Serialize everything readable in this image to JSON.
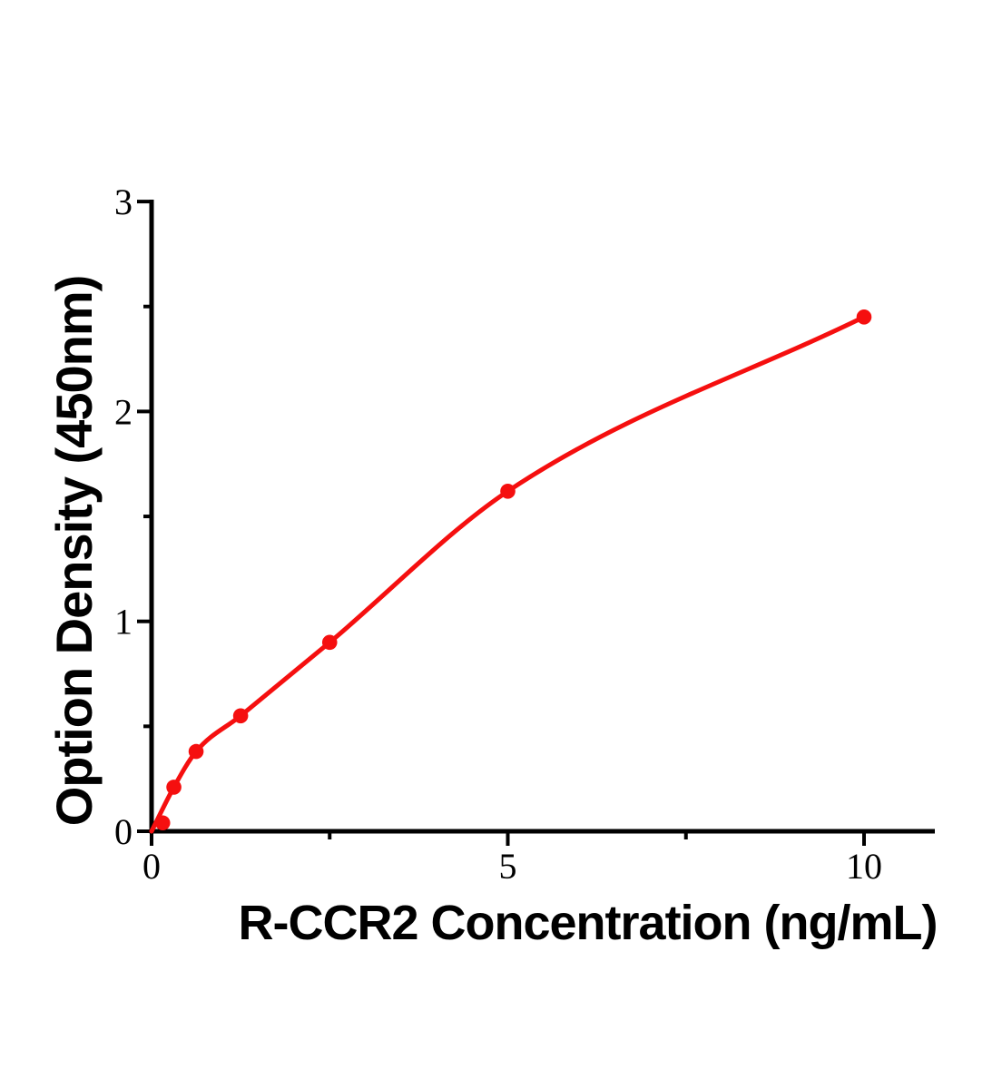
{
  "chart_data": {
    "type": "scatter",
    "title": "",
    "xlabel": "R-CCR2 Concentration (ng/mL)",
    "ylabel": "Option Density (450nm)",
    "points": [
      {
        "x": 0.156,
        "y": 0.04
      },
      {
        "x": 0.313,
        "y": 0.21
      },
      {
        "x": 0.625,
        "y": 0.38
      },
      {
        "x": 1.25,
        "y": 0.55
      },
      {
        "x": 2.5,
        "y": 0.9
      },
      {
        "x": 5,
        "y": 1.62
      },
      {
        "x": 10,
        "y": 2.45
      }
    ],
    "fit_curve": {
      "description": "smooth fitted standard curve starting at origin",
      "x": [
        0,
        0.313,
        0.625,
        1.25,
        2.5,
        5,
        10
      ],
      "y": [
        0,
        0.21,
        0.38,
        0.55,
        0.9,
        1.62,
        2.45
      ]
    },
    "xlim": [
      0,
      11
    ],
    "ylim": [
      0,
      3
    ],
    "x_major_ticks": [
      0,
      5,
      10
    ],
    "x_minor_ticks": [
      2.5,
      7.5
    ],
    "y_major_ticks": [
      0,
      1,
      2,
      3
    ],
    "y_minor_ticks": [
      0.5,
      1.5,
      2.5
    ],
    "grid": false,
    "legend": "none",
    "colors": {
      "marker": "#f50f0f",
      "line": "#f50f0f",
      "axis": "#000000",
      "text": "#000000",
      "background": "#ffffff"
    }
  }
}
